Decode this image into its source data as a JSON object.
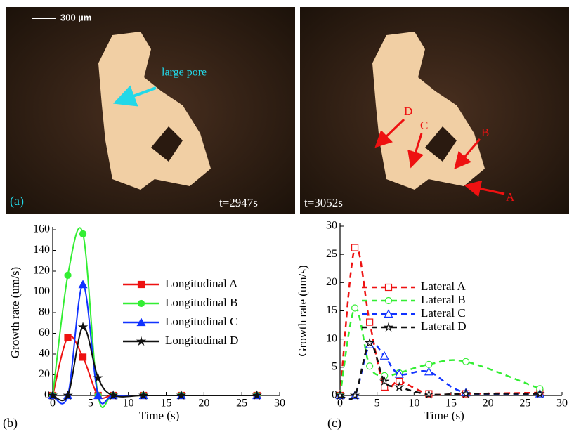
{
  "micrographs": {
    "scale_bar": "300 µm",
    "left": {
      "annotation": "large pore",
      "panel_label": "(a)",
      "time": "t=2947s"
    },
    "right": {
      "time": "t=3052s",
      "markers": [
        "A",
        "B",
        "C",
        "D"
      ]
    }
  },
  "chart_data": [
    {
      "type": "line",
      "panel_label": "(b)",
      "xlabel": "Time (s)",
      "ylabel": "Growth rate (um/s)",
      "x": [
        0,
        2,
        4,
        6,
        8,
        12,
        17,
        27
      ],
      "xlim": [
        0,
        30
      ],
      "xticks": [
        0,
        5,
        10,
        15,
        20,
        25,
        30
      ],
      "ylim": [
        0,
        160
      ],
      "yticks": [
        0,
        20,
        40,
        60,
        80,
        100,
        120,
        140,
        160
      ],
      "smooth": true,
      "line_style": "solid",
      "marker_fill": "filled",
      "series": [
        {
          "name": "Longitudinal A",
          "color": "#ee1111",
          "marker": "square",
          "values": [
            0,
            56,
            37,
            0,
            0,
            0,
            0,
            0
          ]
        },
        {
          "name": "Longitudinal B",
          "color": "#33ee33",
          "marker": "circle",
          "values": [
            0,
            116,
            156,
            0,
            0,
            0,
            0,
            0
          ]
        },
        {
          "name": "Longitudinal C",
          "color": "#1133ff",
          "marker": "triangle",
          "values": [
            0,
            0,
            107,
            0,
            0,
            0,
            0,
            0
          ]
        },
        {
          "name": "Longitudinal D",
          "color": "#111111",
          "marker": "star",
          "values": [
            0,
            0,
            66,
            17,
            0,
            0,
            0,
            0
          ]
        }
      ]
    },
    {
      "type": "line",
      "panel_label": "(c)",
      "xlabel": "Time (s)",
      "ylabel": "Growth rate (um/s)",
      "x": [
        0,
        2,
        4,
        6,
        8,
        12,
        17,
        27
      ],
      "xlim": [
        0,
        30
      ],
      "xticks": [
        0,
        5,
        10,
        15,
        20,
        25,
        30
      ],
      "ylim": [
        0,
        30
      ],
      "yticks": [
        0,
        5,
        10,
        15,
        20,
        25,
        30
      ],
      "smooth": true,
      "line_style": "dashed",
      "marker_fill": "hollow",
      "series": [
        {
          "name": "Lateral A",
          "color": "#ee1111",
          "marker": "square",
          "values": [
            0,
            26.2,
            13,
            1.5,
            2.5,
            0.3,
            0.3,
            0.5
          ]
        },
        {
          "name": "Lateral B",
          "color": "#33ee33",
          "marker": "circle",
          "values": [
            0,
            15.5,
            5.2,
            3.5,
            4,
            5.5,
            6,
            1.2
          ]
        },
        {
          "name": "Lateral C",
          "color": "#1133ff",
          "marker": "triangle",
          "values": [
            0,
            0,
            9,
            7,
            3.8,
            4.2,
            0.5,
            0.3
          ]
        },
        {
          "name": "Lateral D",
          "color": "#111111",
          "marker": "star",
          "values": [
            0,
            0,
            9.3,
            2.5,
            1.5,
            0.2,
            0.3,
            0.3
          ]
        }
      ]
    }
  ]
}
